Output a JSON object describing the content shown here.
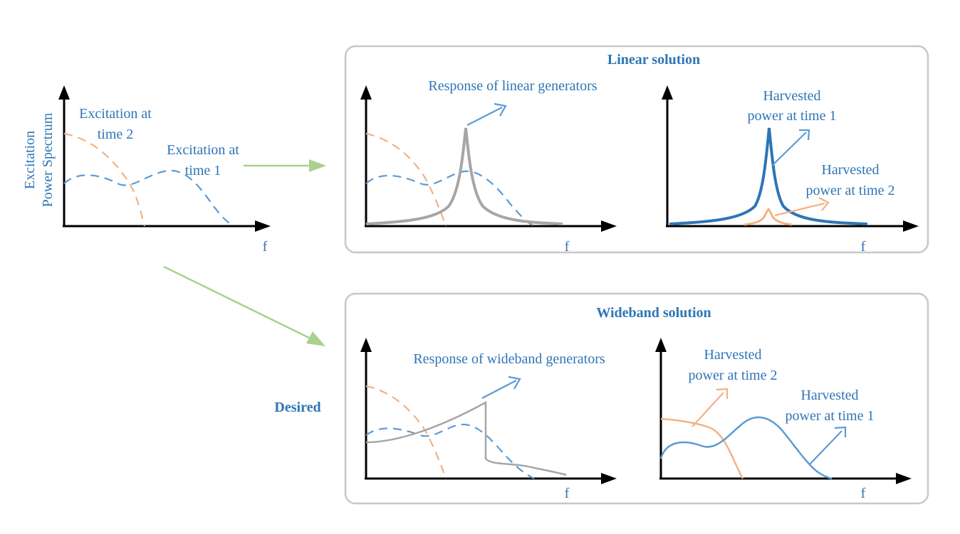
{
  "colors": {
    "blue_text": "#2e75b6",
    "blue_curve": "#5b9bd5",
    "dark_blue_curve": "#2e75b6",
    "orange_curve": "#f4b183",
    "gray_curve": "#a6a6a6",
    "green_arrow": "#a9d18e",
    "panel_border": "#c8c8c8"
  },
  "left_plot": {
    "ylabel_line1": "Excitation",
    "ylabel_line2": "Power Spectrum",
    "xlabel": "f",
    "label_time2_line1": "Excitation at",
    "label_time2_line2": "time 2",
    "label_time1_line1": "Excitation at",
    "label_time1_line2": "time 1"
  },
  "linear_panel": {
    "title": "Linear solution",
    "response_label": "Response of linear generators",
    "xlabel_left": "f",
    "xlabel_right": "f",
    "harvested_t1_line1": "Harvested",
    "harvested_t1_line2": "power at time 1",
    "harvested_t2_line1": "Harvested",
    "harvested_t2_line2": "power at time 2"
  },
  "wideband_panel": {
    "title": "Wideband solution",
    "response_label": "Response of  wideband generators",
    "xlabel_left": "f",
    "xlabel_right": "f",
    "harvested_t2_line1": "Harvested",
    "harvested_t2_line2": "power at time 2",
    "harvested_t1_line1": "Harvested",
    "harvested_t1_line2": "power at time 1"
  },
  "desired_label": "Desired"
}
